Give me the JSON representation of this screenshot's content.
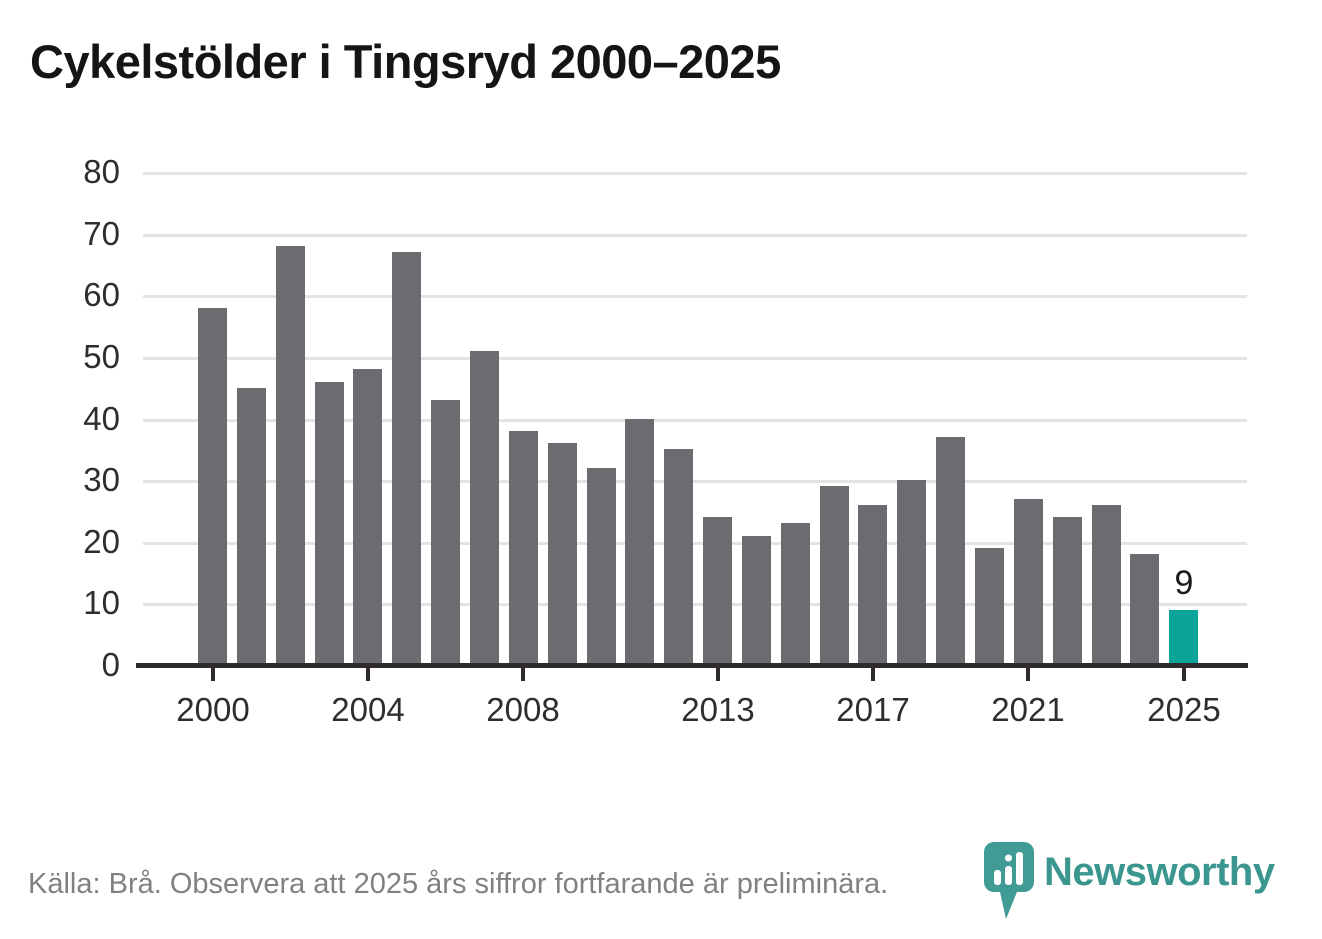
{
  "title": "Cykelstölder i Tingsryd 2000–2025",
  "source_note": "Källa: Brå. Observera att 2025 års siffror fortfarande är preliminära.",
  "logo": {
    "brand": "Newsworthy",
    "icon": "newsworthy-pin-barchart-icon"
  },
  "colors": {
    "bar": "#6e6b70",
    "highlight": "#0aa39a",
    "grid": "#e3e3e3",
    "axis": "#2e2a2e",
    "tick_label": "#2e2e2e",
    "title_text": "#151515",
    "footer_text": "#818181",
    "logo_teal": "#3a968f"
  },
  "chart_data": {
    "type": "bar",
    "title": "Cykelstölder i Tingsryd 2000–2025",
    "xlabel": "",
    "ylabel": "",
    "categories": [
      2000,
      2001,
      2002,
      2003,
      2004,
      2005,
      2006,
      2007,
      2008,
      2009,
      2010,
      2011,
      2012,
      2013,
      2014,
      2015,
      2016,
      2017,
      2018,
      2019,
      2020,
      2021,
      2022,
      2023,
      2024,
      2025
    ],
    "values": [
      58,
      45,
      68,
      46,
      48,
      67,
      43,
      51,
      38,
      36,
      32,
      40,
      35,
      24,
      21,
      23,
      29,
      26,
      30,
      37,
      19,
      27,
      24,
      26,
      18,
      9
    ],
    "ylim": [
      0,
      80
    ],
    "y_ticks": [
      0,
      10,
      20,
      30,
      40,
      50,
      60,
      70,
      80
    ],
    "x_tick_years": [
      2000,
      2004,
      2008,
      2013,
      2017,
      2021,
      2025
    ],
    "grid": "horizontal",
    "legend": "none",
    "highlight_category": 2025,
    "highlight_value_label": "9"
  }
}
